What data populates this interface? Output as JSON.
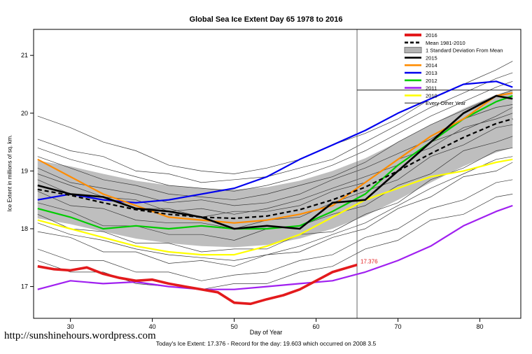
{
  "chart_data": {
    "type": "line",
    "title": "Global Sea Ice Extent Day 65 1978 to 2016",
    "xlabel": "Day of Year",
    "ylabel": "Ice Extent in millions of sq. km.",
    "xlim": [
      25.5,
      85
    ],
    "ylim": [
      16.45,
      21.45
    ],
    "xticks": [
      30,
      40,
      50,
      60,
      70,
      80
    ],
    "yticks": [
      17,
      18,
      19,
      20,
      21
    ],
    "grid": false,
    "legend_position": "top-right",
    "x": [
      26,
      30,
      34,
      38,
      42,
      46,
      50,
      54,
      58,
      62,
      66,
      70,
      74,
      78,
      82,
      84
    ],
    "band": {
      "label": "1 Standard Deviation From Mean",
      "color": "#b3b3b3",
      "upper": [
        19.18,
        19.08,
        18.95,
        18.83,
        18.75,
        18.7,
        18.68,
        18.72,
        18.83,
        19.0,
        19.22,
        19.5,
        19.8,
        20.08,
        20.32,
        20.4
      ],
      "lower": [
        18.18,
        18.08,
        17.95,
        17.83,
        17.75,
        17.7,
        17.68,
        17.72,
        17.83,
        18.0,
        18.22,
        18.5,
        18.8,
        19.08,
        19.32,
        19.4
      ]
    },
    "mean": {
      "label": "Mean 1981-2010",
      "color": "#000000",
      "dashed": true,
      "values": [
        18.68,
        18.58,
        18.45,
        18.33,
        18.25,
        18.2,
        18.18,
        18.22,
        18.33,
        18.5,
        18.72,
        19.0,
        19.3,
        19.58,
        19.82,
        19.9
      ]
    },
    "series": [
      {
        "name": "2015",
        "color": "#000000",
        "width": 2.6,
        "values": [
          18.75,
          18.6,
          18.55,
          18.35,
          18.3,
          18.2,
          18.0,
          18.05,
          18.0,
          18.45,
          18.5,
          19.0,
          19.5,
          20.0,
          20.3,
          20.25
        ]
      },
      {
        "name": "2014",
        "color": "#ff8c00",
        "width": 2.2,
        "values": [
          19.2,
          18.9,
          18.6,
          18.4,
          18.2,
          18.15,
          18.1,
          18.15,
          18.25,
          18.4,
          18.8,
          19.2,
          19.6,
          19.9,
          20.3,
          20.35
        ]
      },
      {
        "name": "2013",
        "color": "#0000ee",
        "width": 2.2,
        "values": [
          18.5,
          18.6,
          18.5,
          18.45,
          18.5,
          18.6,
          18.7,
          18.9,
          19.2,
          19.45,
          19.7,
          20.0,
          20.25,
          20.5,
          20.55,
          20.45
        ]
      },
      {
        "name": "2012",
        "color": "#00cc00",
        "width": 2.2,
        "values": [
          18.35,
          18.2,
          18.0,
          18.05,
          18.0,
          18.05,
          18.0,
          18.0,
          18.05,
          18.3,
          18.6,
          19.1,
          19.5,
          19.9,
          20.2,
          20.3
        ]
      },
      {
        "name": "2011",
        "color": "#a020f0",
        "width": 2.2,
        "values": [
          16.95,
          17.1,
          17.05,
          17.08,
          17.0,
          16.95,
          16.95,
          17.0,
          17.05,
          17.1,
          17.25,
          17.45,
          17.7,
          18.05,
          18.3,
          18.4
        ]
      },
      {
        "name": "2010",
        "color": "#ffff00",
        "width": 2.2,
        "values": [
          18.15,
          18.0,
          17.85,
          17.7,
          17.6,
          17.55,
          17.55,
          17.7,
          17.9,
          18.2,
          18.5,
          18.7,
          18.9,
          19.0,
          19.15,
          19.2
        ]
      }
    ],
    "current_year": {
      "name": "2016",
      "color": "#e31a1c",
      "width": 3.6,
      "x": [
        26,
        28,
        30,
        32,
        34,
        36,
        38,
        40,
        42,
        44,
        46,
        48,
        50,
        52,
        54,
        56,
        58,
        60,
        62,
        65
      ],
      "values": [
        17.35,
        17.3,
        17.28,
        17.33,
        17.22,
        17.15,
        17.1,
        17.12,
        17.05,
        17.0,
        16.95,
        16.9,
        16.72,
        16.7,
        16.78,
        16.85,
        16.95,
        17.1,
        17.25,
        17.376
      ],
      "annotation": "17.376"
    },
    "background_years_label": "Every Other Year",
    "background_years": [
      [
        19.95,
        19.75,
        19.5,
        19.35,
        19.1,
        19.0,
        18.95,
        19.05,
        19.2,
        19.45,
        19.65,
        19.9,
        20.25,
        20.5,
        20.75,
        20.9
      ],
      [
        19.55,
        19.35,
        19.25,
        19.0,
        18.95,
        18.8,
        18.85,
        18.9,
        19.05,
        19.2,
        19.5,
        19.8,
        20.1,
        20.35,
        20.6,
        20.7
      ],
      [
        19.4,
        19.2,
        19.05,
        18.9,
        18.75,
        18.7,
        18.65,
        18.75,
        18.9,
        19.1,
        19.35,
        19.65,
        19.95,
        20.2,
        20.45,
        20.55
      ],
      [
        19.25,
        19.05,
        18.85,
        18.75,
        18.6,
        18.55,
        18.5,
        18.6,
        18.75,
        18.9,
        19.15,
        19.5,
        19.8,
        20.05,
        20.3,
        20.4
      ],
      [
        19.05,
        18.8,
        18.7,
        18.6,
        18.45,
        18.5,
        18.4,
        18.45,
        18.6,
        18.85,
        19.05,
        19.3,
        19.55,
        19.9,
        20.1,
        20.15
      ],
      [
        18.95,
        18.75,
        18.55,
        18.5,
        18.3,
        18.35,
        18.25,
        18.35,
        18.5,
        18.7,
        18.9,
        19.1,
        19.5,
        19.7,
        19.95,
        20.1
      ],
      [
        18.85,
        18.6,
        18.55,
        18.35,
        18.35,
        18.2,
        18.3,
        18.3,
        18.4,
        18.65,
        18.8,
        19.2,
        19.4,
        19.75,
        19.9,
        20.0
      ],
      [
        18.65,
        18.4,
        18.35,
        18.15,
        18.1,
        18.1,
        18.0,
        18.15,
        18.2,
        18.45,
        18.65,
        18.85,
        19.25,
        19.45,
        19.75,
        19.8
      ],
      [
        18.45,
        18.3,
        18.05,
        18.05,
        17.9,
        17.9,
        17.8,
        18.0,
        18.05,
        18.25,
        18.4,
        18.75,
        18.95,
        19.35,
        19.5,
        19.6
      ],
      [
        18.25,
        18.0,
        17.95,
        17.75,
        17.75,
        17.6,
        17.65,
        17.65,
        17.9,
        17.95,
        18.25,
        18.45,
        18.85,
        19.05,
        19.35,
        19.4
      ],
      [
        18.1,
        17.9,
        17.8,
        17.65,
        17.55,
        17.5,
        17.45,
        17.55,
        17.7,
        17.9,
        18.1,
        18.4,
        18.7,
        18.95,
        19.2,
        19.25
      ],
      [
        17.95,
        17.85,
        17.6,
        17.6,
        17.4,
        17.45,
        17.35,
        17.55,
        17.6,
        17.85,
        18.0,
        18.35,
        18.55,
        18.9,
        19.0,
        19.15
      ],
      [
        17.65,
        17.45,
        17.45,
        17.25,
        17.25,
        17.1,
        17.2,
        17.25,
        17.45,
        17.55,
        17.85,
        18.0,
        18.35,
        18.5,
        18.8,
        18.85
      ],
      [
        17.45,
        17.25,
        17.25,
        17.05,
        17.0,
        16.95,
        17.05,
        17.05,
        17.25,
        17.35,
        17.65,
        17.8,
        18.15,
        18.25,
        18.55,
        18.6
      ]
    ],
    "reference": {
      "vertical_x": 65,
      "horizontal_y": 20.4
    },
    "legend": [
      {
        "label": "2016",
        "color": "#e31a1c",
        "style": "thick"
      },
      {
        "label": "Mean 1981-2010",
        "color": "#000000",
        "style": "dashed"
      },
      {
        "label": "1 Standard Deviation From Mean",
        "color": "#b3b3b3",
        "style": "patch"
      },
      {
        "label": "2015",
        "color": "#000000",
        "style": "thick"
      },
      {
        "label": "2014",
        "color": "#ff8c00",
        "style": "thick"
      },
      {
        "label": "2013",
        "color": "#0000ee",
        "style": "thick"
      },
      {
        "label": "2012",
        "color": "#00cc00",
        "style": "thick"
      },
      {
        "label": "2011",
        "color": "#a020f0",
        "style": "thick"
      },
      {
        "label": "2010",
        "color": "#ffff00",
        "style": "thick"
      },
      {
        "label": "Every Other Year",
        "color": "#000000",
        "style": "thin"
      }
    ]
  },
  "footer": {
    "note": "Today's Ice Extent: 17.376  - Record for the day: 19.603 which occurred on 2008 3.5",
    "url": "http://sunshinehours.wordpress.com"
  }
}
